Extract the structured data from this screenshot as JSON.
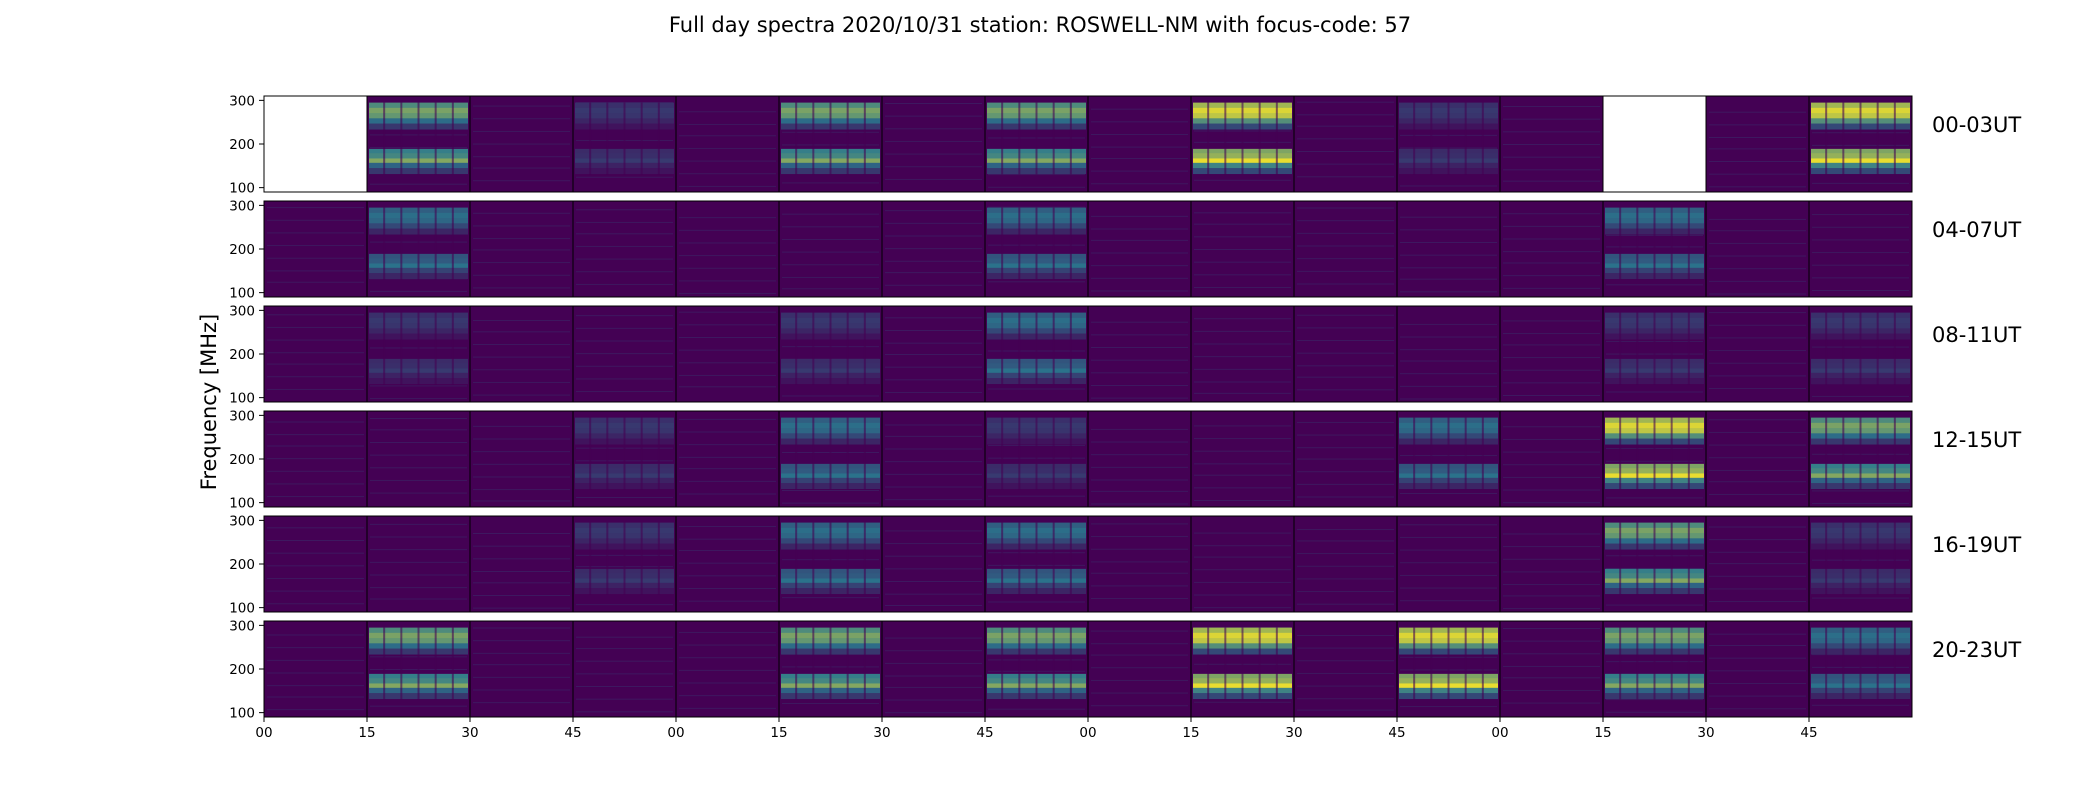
{
  "chart_data": {
    "type": "heatmap",
    "title": "Full day spectra 2020/10/31 station: ROSWELL-NM with focus-code: 57",
    "ylabel": "Frequency [MHz]",
    "xlabel": "",
    "colormap": "viridis",
    "colors": {
      "low": "#440154",
      "mid": "#2a788e",
      "high": "#fde725",
      "missing": "#ffffff"
    },
    "ylim": [
      90,
      310
    ],
    "y_ticks": [
      "100",
      "200",
      "300"
    ],
    "x_ticks": [
      "00",
      "15",
      "30",
      "45",
      "00",
      "15",
      "30",
      "45",
      "00",
      "15",
      "30",
      "45",
      "00",
      "15",
      "30",
      "45"
    ],
    "legend": "none",
    "grid": false,
    "rows": [
      {
        "label": "00-03UT",
        "intensity": [
          -1,
          3,
          0,
          1,
          0,
          3,
          0,
          3,
          0,
          4,
          0,
          1,
          0,
          -1,
          0,
          4
        ]
      },
      {
        "label": "04-07UT",
        "intensity": [
          0,
          2,
          0,
          0,
          0,
          0,
          0,
          2,
          0,
          0,
          0,
          0,
          0,
          2,
          0,
          0
        ]
      },
      {
        "label": "08-11UT",
        "intensity": [
          0,
          1,
          0,
          0,
          0,
          1,
          0,
          2,
          0,
          0,
          0,
          0,
          0,
          1,
          0,
          1
        ]
      },
      {
        "label": "12-15UT",
        "intensity": [
          0,
          0,
          0,
          1,
          0,
          2,
          0,
          1,
          0,
          0,
          0,
          2,
          0,
          4,
          0,
          3
        ]
      },
      {
        "label": "16-19UT",
        "intensity": [
          0,
          0,
          0,
          1,
          0,
          2,
          0,
          2,
          0,
          0,
          0,
          0,
          0,
          3,
          0,
          1
        ]
      },
      {
        "label": "20-23UT",
        "intensity": [
          0,
          3,
          0,
          0,
          0,
          3,
          0,
          3,
          0,
          4,
          0,
          4,
          0,
          3,
          0,
          2
        ]
      }
    ]
  }
}
